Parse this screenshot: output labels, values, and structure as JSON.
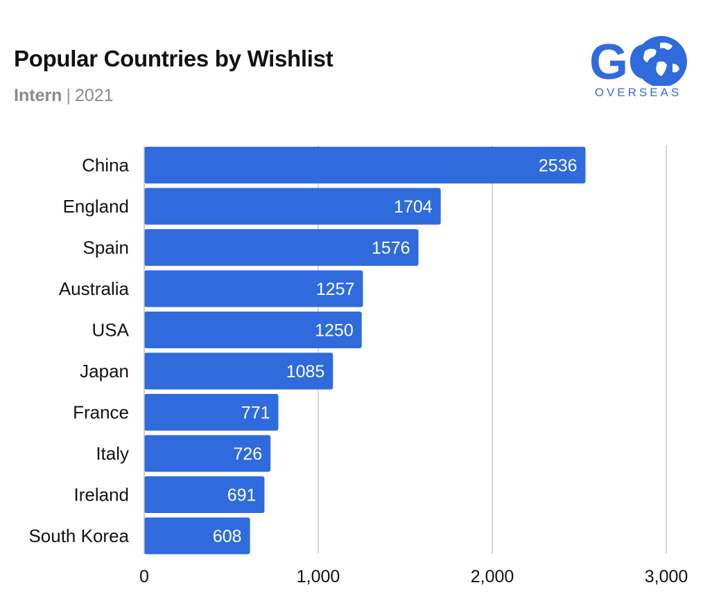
{
  "header": {
    "title": "Popular Countries by Wishlist",
    "subtitle_strong": "Intern",
    "subtitle_sep": "|",
    "subtitle_year": "2021"
  },
  "logo": {
    "text": "OVERSEAS",
    "letters": "GO",
    "icon": "globe-icon",
    "color": "#2f6bdc"
  },
  "chart_data": {
    "type": "bar",
    "orientation": "horizontal",
    "categories": [
      "China",
      "England",
      "Spain",
      "Australia",
      "USA",
      "Japan",
      "France",
      "Italy",
      "Ireland",
      "South Korea"
    ],
    "values": [
      2536,
      1704,
      1576,
      1257,
      1250,
      1085,
      771,
      726,
      691,
      608
    ],
    "data_labels": [
      "2536",
      "1704",
      "1576",
      "1257",
      "1250",
      "1085",
      "771",
      "726",
      "691",
      "608"
    ],
    "x_ticks": [
      0,
      1000,
      2000,
      3000
    ],
    "x_tick_labels": [
      "0",
      "1,000",
      "2,000",
      "3,000"
    ],
    "xlim": [
      0,
      3000
    ],
    "grid": "vertical",
    "bar_color": "#2f6bdc",
    "title": "Popular Countries by Wishlist"
  }
}
